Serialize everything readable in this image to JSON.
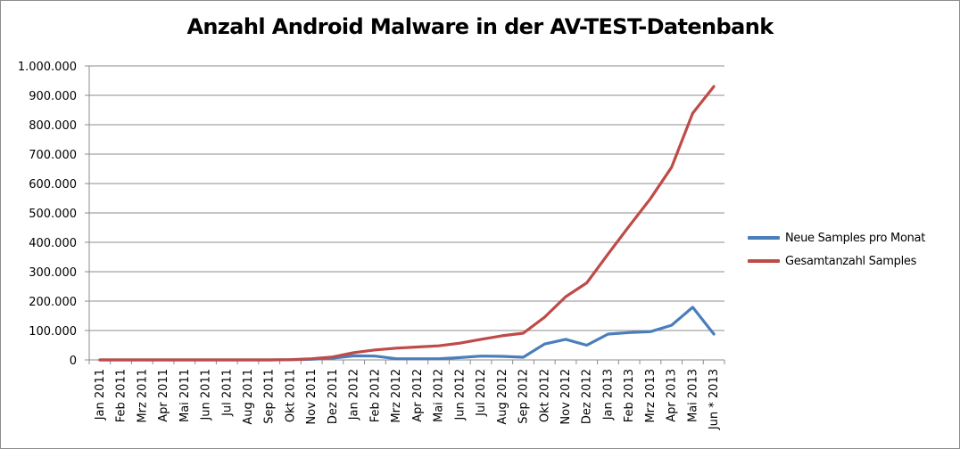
{
  "chart_data": {
    "type": "line",
    "title": "Anzahl Android Malware in der AV-TEST-Datenbank",
    "xlabel": "",
    "ylabel": "",
    "ylim": [
      0,
      1000000
    ],
    "yticks": [
      0,
      100000,
      200000,
      300000,
      400000,
      500000,
      600000,
      700000,
      800000,
      900000,
      1000000
    ],
    "ytick_labels": [
      "0",
      "100.000",
      "200.000",
      "300.000",
      "400.000",
      "500.000",
      "600.000",
      "700.000",
      "800.000",
      "900.000",
      "1.000.000"
    ],
    "grid": "horizontal",
    "legend_position": "right",
    "categories": [
      "Jan 2011",
      "Feb 2011",
      "Mrz 2011",
      "Apr 2011",
      "Mai 2011",
      "Jun 2011",
      "Jul 2011",
      "Aug 2011",
      "Sep 2011",
      "Okt 2011",
      "Nov 2011",
      "Dez 2011",
      "Jan 2012",
      "Feb 2012",
      "Mrz 2012",
      "Apr 2012",
      "Mai 2012",
      "Jun 2012",
      "Jul 2012",
      "Aug 2012",
      "Sep 2012",
      "Okt 2012",
      "Nov 2012",
      "Dez 2012",
      "Jan 2013",
      "Feb 2013",
      "Mrz 2013",
      "Apr 2013",
      "Mai 2013",
      "Jun * 2013"
    ],
    "series": [
      {
        "name": "Neue Samples pro Monat",
        "color": "#4a7ebb",
        "values": [
          0,
          0,
          0,
          0,
          0,
          0,
          0,
          0,
          0,
          500,
          2000,
          6000,
          14000,
          13000,
          4000,
          4000,
          4000,
          8000,
          13000,
          12000,
          9000,
          54000,
          70000,
          50000,
          88000,
          93000,
          96000,
          118000,
          179000,
          88000
        ]
      },
      {
        "name": "Gesamtanzahl Samples",
        "color": "#be4b48",
        "values": [
          0,
          0,
          0,
          0,
          0,
          0,
          0,
          0,
          0,
          1000,
          4000,
          10000,
          25000,
          34000,
          40000,
          44000,
          48000,
          57000,
          70000,
          82000,
          91000,
          145000,
          215000,
          262000,
          360000,
          455000,
          548000,
          655000,
          839000,
          930000
        ]
      }
    ]
  }
}
